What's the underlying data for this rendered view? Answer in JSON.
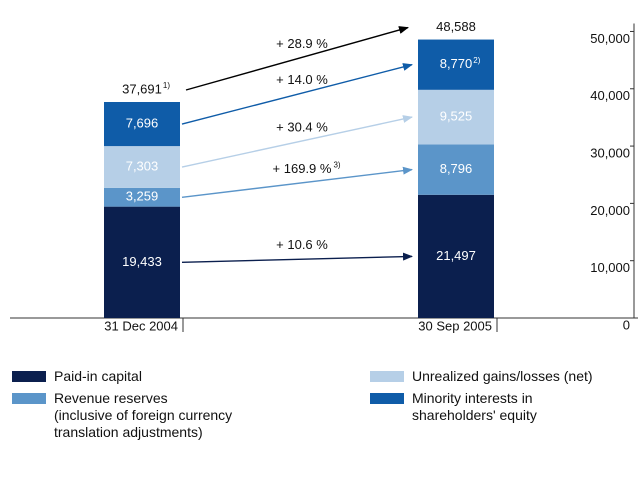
{
  "chart_data": {
    "type": "stacked_bar",
    "categories": [
      "31 Dec 2004",
      "30 Sep 2005"
    ],
    "series": [
      {
        "name": "Paid-in capital",
        "color": "#0b1f4e",
        "values": [
          19433,
          21497
        ],
        "value_labels": [
          "19,433",
          "21,497"
        ]
      },
      {
        "name": "Revenue reserves\n(inclusive of foreign currency\ntranslation adjustments)",
        "color": "#5b95c9",
        "values": [
          3259,
          8796
        ],
        "value_labels": [
          "3,259",
          "8,796"
        ]
      },
      {
        "name": "Unrealized gains/losses (net)",
        "color": "#b6cfe7",
        "values": [
          7303,
          9525
        ],
        "value_labels": [
          "7,303",
          "9,525"
        ]
      },
      {
        "name": "Minority interests in\nshareholders' equity",
        "color": "#0f5ca8",
        "values": [
          7696,
          8770
        ],
        "value_labels": [
          "7,696",
          "8,770"
        ],
        "notes": [
          null,
          "2)"
        ]
      }
    ],
    "totals": {
      "values": [
        37691,
        48588
      ],
      "value_labels": [
        "37,691",
        "48,588"
      ],
      "notes": [
        "1)",
        null
      ]
    },
    "changes": [
      {
        "label": "+ 10.6 %"
      },
      {
        "label": "+ 169.9 %",
        "note": "3)"
      },
      {
        "label": "+ 30.4 %"
      },
      {
        "label": "+ 14.0 %"
      },
      {
        "label": "+ 28.9 %"
      }
    ],
    "ylim": [
      0,
      52000
    ],
    "yticks": [
      0,
      {
        "value": 10000,
        "label": "10,000"
      },
      {
        "value": 20000,
        "label": "20,000"
      },
      {
        "value": 30000,
        "label": "30,000"
      },
      {
        "value": 40000,
        "label": "40,000"
      },
      {
        "value": 50000,
        "label": "50,000"
      }
    ]
  }
}
